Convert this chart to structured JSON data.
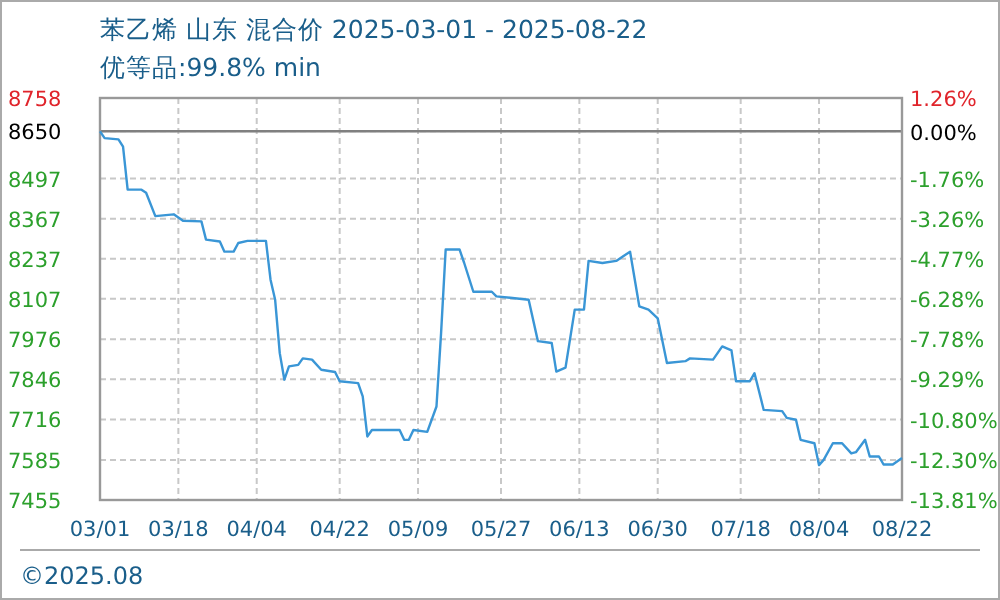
{
  "chart_data": {
    "type": "line",
    "title": "苯乙烯 山东 混合价 2025-03-01 - 2025-08-22",
    "subtitle": "优等品:99.8% min",
    "x": [
      "--03-01",
      "--03-02",
      "--03-05",
      "--03-06",
      "--03-07",
      "--03-10",
      "--03-11",
      "--03-13",
      "--03-17",
      "--03-19",
      "--03-23",
      "--03-24",
      "--03-27",
      "--03-28",
      "--03-30",
      "--03-31",
      "--04-02",
      "--04-06",
      "--04-07",
      "--04-08",
      "--04-09",
      "--04-10",
      "--04-11",
      "--04-13",
      "--04-14",
      "--04-16",
      "--04-18",
      "--04-21",
      "--04-22",
      "--04-26",
      "--04-27",
      "--04-28",
      "--04-29",
      "--05-05",
      "--05-06",
      "--05-07",
      "--05-08",
      "--05-11",
      "--05-13",
      "--05-14",
      "--05-15",
      "--05-18",
      "--05-19",
      "--05-21",
      "--05-25",
      "--05-26",
      "--05-30",
      "--06-02",
      "--06-04",
      "--06-07",
      "--06-08",
      "--06-10",
      "--06-12",
      "--06-14",
      "--06-15",
      "--06-18",
      "--06-21",
      "--06-24",
      "--06-26",
      "--06-28",
      "--06-30",
      "--07-02",
      "--07-06",
      "--07-07",
      "--07-12",
      "--07-14",
      "--07-16",
      "--07-17",
      "--07-20",
      "--07-21",
      "--07-23",
      "--07-27",
      "--07-28",
      "--07-30",
      "--07-31",
      "--08-03",
      "--08-04",
      "--08-05",
      "--08-07",
      "--08-09",
      "--08-11",
      "--08-12",
      "--08-14",
      "--08-15",
      "--08-17",
      "--08-18",
      "--08-20",
      "--08-22"
    ],
    "series": [
      {
        "color": "#3a96d6",
        "values": [
          8650,
          8628,
          8624,
          8600,
          8461,
          8461,
          8451,
          8375,
          8381,
          8360,
          8358,
          8299,
          8293,
          8260,
          8260,
          8288,
          8295,
          8295,
          8169,
          8104,
          7931,
          7845,
          7888,
          7893,
          7914,
          7910,
          7877,
          7870,
          7840,
          7834,
          7791,
          7661,
          7682,
          7682,
          7650,
          7650,
          7682,
          7676,
          7758,
          7996,
          8267,
          8267,
          8224,
          8130,
          8130,
          8115,
          8109,
          8104,
          7970,
          7964,
          7871,
          7884,
          8072,
          8072,
          8230,
          8223,
          8230,
          8260,
          8083,
          8072,
          8044,
          7899,
          7905,
          7914,
          7910,
          7953,
          7940,
          7840,
          7840,
          7866,
          7747,
          7743,
          7721,
          7715,
          7650,
          7639,
          7568,
          7585,
          7639,
          7639,
          7606,
          7610,
          7650,
          7596,
          7596,
          7570,
          7570,
          7591
        ]
      }
    ],
    "xlim": [
      "--03-01",
      "--08-22"
    ],
    "xticks": [
      {
        "value": "--03-01",
        "label": "03/01"
      },
      {
        "value": "--03-18",
        "label": "03/18"
      },
      {
        "value": "--04-04",
        "label": "04/04"
      },
      {
        "value": "--04-22",
        "label": "04/22"
      },
      {
        "value": "--05-09",
        "label": "05/09"
      },
      {
        "value": "--05-27",
        "label": "05/27"
      },
      {
        "value": "--06-13",
        "label": "06/13"
      },
      {
        "value": "--06-30",
        "label": "06/30"
      },
      {
        "value": "--07-18",
        "label": "07/18"
      },
      {
        "value": "--08-04",
        "label": "08/04"
      },
      {
        "value": "--08-22",
        "label": "08/22"
      }
    ],
    "ylim": [
      7455,
      8758
    ],
    "yticks": [
      8758,
      8650,
      8497,
      8367,
      8237,
      8107,
      7976,
      7846,
      7716,
      7585,
      7455
    ],
    "y2lim": [
      -13.81,
      1.26
    ],
    "y2ticks": [
      {
        "value": 1.26,
        "label": "1.26%"
      },
      {
        "value": 0,
        "label": "0.00%"
      },
      {
        "value": -1.76,
        "label": "-1.76%"
      },
      {
        "value": -3.26,
        "label": "-3.26%"
      },
      {
        "value": -4.77,
        "label": "-4.77%"
      },
      {
        "value": -6.28,
        "label": "-6.28%"
      },
      {
        "value": -7.78,
        "label": "-7.78%"
      },
      {
        "value": -9.29,
        "label": "-9.29%"
      },
      {
        "value": -10.8,
        "label": "-10.80%"
      },
      {
        "value": -12.3,
        "label": "-12.30%"
      },
      {
        "value": -13.81,
        "label": "-13.81%"
      }
    ],
    "ref_lines": [
      {
        "axis": "y",
        "value": 8650,
        "color": "#808080"
      }
    ],
    "grid": true,
    "marker": "none",
    "line_style": "solid",
    "annotations": [
      "©2025.08"
    ]
  }
}
